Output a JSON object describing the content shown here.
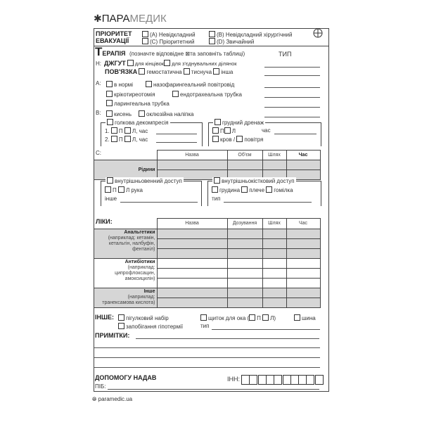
{
  "logo": {
    "brand_bold": "ПАРА",
    "brand_light": "МЕДИК"
  },
  "priority": {
    "label_line1": "ПРІОРИТЕТ",
    "label_line2": "ЕВАКУАЦІЇ",
    "options": [
      "(A) Невідкладний",
      "(B) Невідкладний хірургічний",
      "(C) Пріоритетний",
      "(D) Звичайний"
    ]
  },
  "therapy": {
    "title_initial": "Т",
    "title_rest": "ЕРАПІЯ",
    "instruction_before": "(позначте відповідне",
    "instruction_after": "та заповніть таблиці)",
    "type_label": "ТИП"
  },
  "h": {
    "label": "H:",
    "tourniquet": "ДЖГУТ",
    "tourniquet_options": [
      "для кінцівок",
      "для з'єднувальних ділянок"
    ],
    "dressing": "ПОВ'ЯЗКА",
    "dressing_options": [
      "гемостатична",
      "тиснуча",
      "інша"
    ]
  },
  "a": {
    "label": "A:",
    "options": [
      "в нормі",
      "назофарингеальний повітровід",
      "крікотиреотомія",
      "ендотрахеальна трубка",
      "ларингеальна трубка"
    ]
  },
  "b": {
    "label": "B:",
    "options": [
      "кисень",
      "оклюзійна наліпка"
    ],
    "needle": {
      "title": "голкова декомпресія",
      "row1": "1.",
      "row2": "2.",
      "right": "П",
      "left": "Л, час"
    },
    "chest": {
      "title": "грудний дренаж",
      "right": "П",
      "left": "Л",
      "time": "час",
      "blood": "кров /",
      "air": "повітря"
    }
  },
  "c": {
    "label": "C:",
    "columns": [
      "Назва",
      "Об'єм",
      "Шлях",
      "Час"
    ],
    "row_label": "Рідини",
    "iv": {
      "title": "внутрішньовенний доступ",
      "right": "П",
      "left": "Л рука",
      "other": "інше"
    },
    "io": {
      "title": "внутрішньокістковий доступ",
      "options": [
        "грудина",
        "плече",
        "гомілка"
      ],
      "type": "тип"
    }
  },
  "meds": {
    "label": "ЛІКИ:",
    "columns": [
      "Назва",
      "Дозування",
      "Шлях",
      "Час"
    ],
    "groups": [
      {
        "name": "Анальгетики",
        "note": "(наприклад: кетамін, кетальгін, налбуфін, фентаніл)"
      },
      {
        "name": "Антибіотики",
        "note": "(наприклад: ципрофлоксацин, амоксицилін)"
      },
      {
        "name": "Інше",
        "note": "(наприклад: транексамова кислота)"
      }
    ]
  },
  "other": {
    "label": "ІНШЕ:",
    "pill_pack": "пігулковий набір",
    "hypothermia": "запобігання гіпотермії",
    "eye_shield": "щиток для ока (",
    "eye_right": "П",
    "eye_left": "Л)",
    "splint": "шина",
    "type": "тип"
  },
  "notes": {
    "label": "ПРИМІТКИ:"
  },
  "provider": {
    "label": "ДОПОМОГУ НАДАВ",
    "name_label": "ПІБ:",
    "tax_id_label": "ІНН:"
  },
  "footer": {
    "website": "paramedic.ua"
  }
}
